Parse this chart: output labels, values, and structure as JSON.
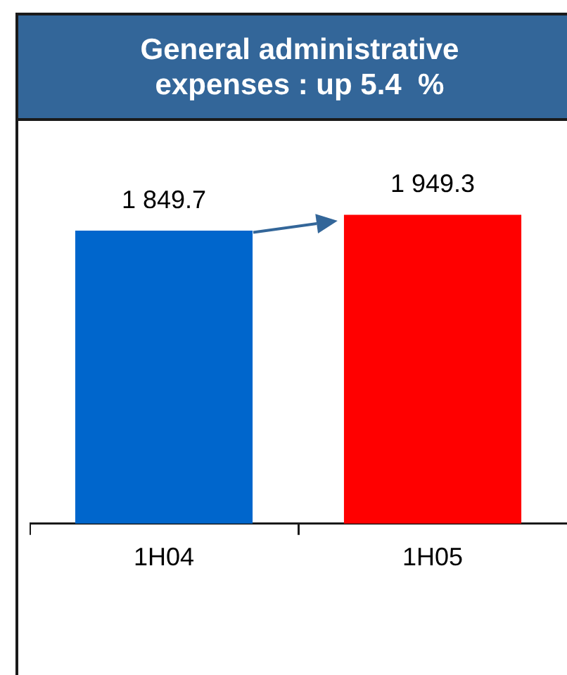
{
  "chart_data": {
    "type": "bar",
    "title": "General administrative expenses : up 5.4  %",
    "categories": [
      "1H04",
      "1H05"
    ],
    "values": [
      1849.7,
      1949.3
    ],
    "colors": [
      "#0066cc",
      "#ff0000"
    ],
    "value_labels": [
      "1 849.7",
      "1 949.3"
    ]
  }
}
